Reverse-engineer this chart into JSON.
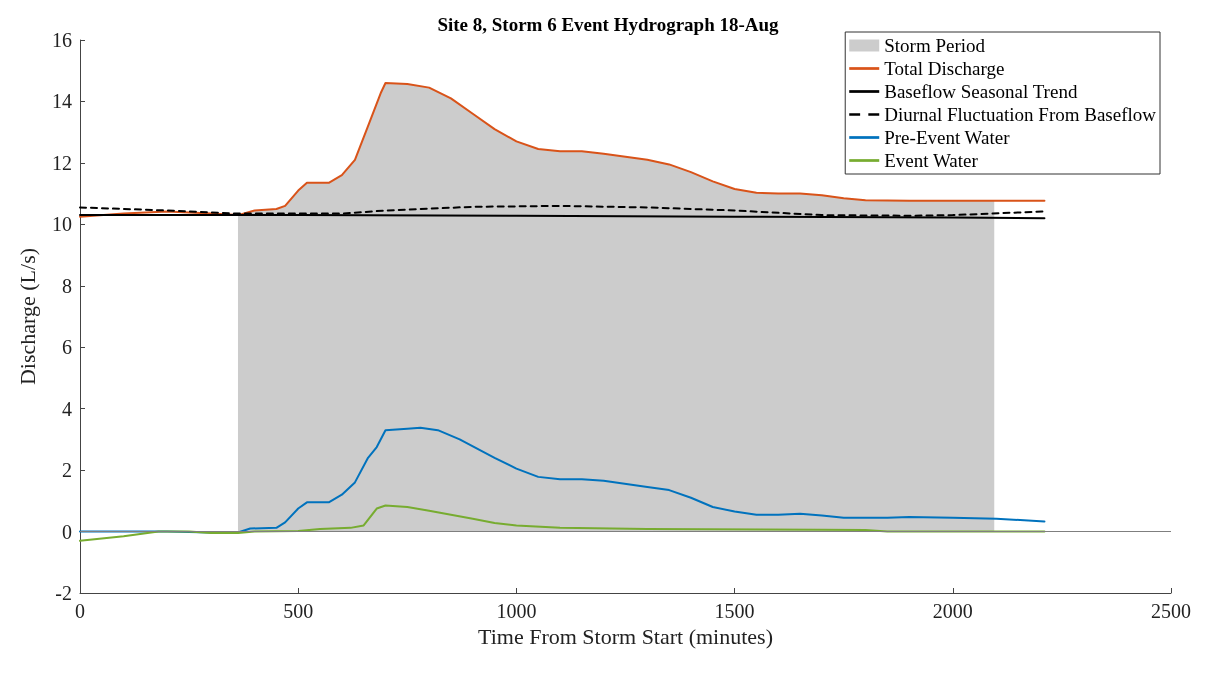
{
  "chart_data": {
    "type": "line",
    "title": "Site 8, Storm 6 Event Hydrograph 18-Aug",
    "xlabel": "Time From Storm Start (minutes)",
    "ylabel": "Discharge (L/s)",
    "xlim": [
      0,
      2500
    ],
    "xticks": [
      0,
      500,
      1000,
      1500,
      2000,
      2500
    ],
    "ylim": [
      -2,
      16
    ],
    "yticks": [
      -2,
      0,
      2,
      4,
      6,
      8,
      10,
      12,
      14,
      16
    ],
    "grid": false,
    "legend": "top right",
    "marker": "none",
    "ref_lines": [
      {
        "axis": "y",
        "value": 0,
        "color": "#7f7f7f"
      }
    ],
    "series": [
      {
        "name": "Storm Period",
        "type": "area",
        "color": "#cccccc",
        "x": [
          362,
          400,
          450,
          470,
          500,
          520,
          570,
          600,
          630,
          660,
          690,
          700,
          750,
          800,
          850,
          900,
          950,
          1000,
          1050,
          1100,
          1150,
          1200,
          1250,
          1300,
          1350,
          1400,
          1450,
          1500,
          1550,
          1600,
          1650,
          1700,
          1750,
          1800,
          1900,
          2000,
          2095
        ],
        "values": [
          10.3,
          10.45,
          10.5,
          10.6,
          11.1,
          11.35,
          11.35,
          11.6,
          12.1,
          13.2,
          14.3,
          14.6,
          14.57,
          14.45,
          14.1,
          13.6,
          13.1,
          12.7,
          12.45,
          12.38,
          12.38,
          12.3,
          12.2,
          12.1,
          11.95,
          11.7,
          11.4,
          11.15,
          11.03,
          11.0,
          11.0,
          10.95,
          10.85,
          10.78,
          10.77,
          10.77,
          10.77
        ]
      },
      {
        "name": "Total Discharge",
        "color": "#d95319",
        "line_style": "solid",
        "x": [
          0,
          100,
          200,
          300,
          362,
          400,
          450,
          470,
          500,
          520,
          570,
          600,
          630,
          660,
          690,
          700,
          750,
          800,
          850,
          900,
          950,
          1000,
          1050,
          1100,
          1150,
          1200,
          1250,
          1300,
          1350,
          1400,
          1450,
          1500,
          1550,
          1600,
          1650,
          1700,
          1750,
          1800,
          1900,
          2000,
          2095,
          2210
        ],
        "values": [
          10.25,
          10.35,
          10.42,
          10.35,
          10.3,
          10.45,
          10.5,
          10.6,
          11.1,
          11.35,
          11.35,
          11.6,
          12.1,
          13.2,
          14.3,
          14.6,
          14.57,
          14.45,
          14.1,
          13.6,
          13.1,
          12.7,
          12.45,
          12.38,
          12.38,
          12.3,
          12.2,
          12.1,
          11.95,
          11.7,
          11.4,
          11.15,
          11.03,
          11.0,
          11.0,
          10.95,
          10.85,
          10.78,
          10.77,
          10.77,
          10.77,
          10.77
        ]
      },
      {
        "name": "Baseflow Seasonal Trend",
        "color": "#000000",
        "line_style": "solid",
        "x": [
          0,
          500,
          1000,
          1500,
          2000,
          2210
        ],
        "values": [
          10.3,
          10.3,
          10.28,
          10.25,
          10.22,
          10.2
        ]
      },
      {
        "name": "Diurnal Fluctuation From Baseflow",
        "color": "#000000",
        "line_style": "dashed",
        "x": [
          0,
          200,
          362,
          600,
          700,
          900,
          1100,
          1300,
          1500,
          1700,
          1900,
          2000,
          2210
        ],
        "values": [
          10.55,
          10.45,
          10.35,
          10.35,
          10.45,
          10.57,
          10.6,
          10.55,
          10.45,
          10.3,
          10.28,
          10.3,
          10.42
        ]
      },
      {
        "name": "Pre-Event Water",
        "color": "#0072bd",
        "line_style": "solid",
        "x": [
          0,
          170,
          200,
          300,
          362,
          390,
          450,
          470,
          500,
          520,
          570,
          600,
          630,
          660,
          680,
          700,
          750,
          780,
          820,
          870,
          950,
          1000,
          1050,
          1100,
          1150,
          1200,
          1300,
          1350,
          1400,
          1450,
          1500,
          1550,
          1600,
          1650,
          1700,
          1750,
          1850,
          1900,
          2000,
          2100,
          2210
        ],
        "values": [
          0,
          0,
          0,
          -0.03,
          -0.03,
          0.1,
          0.12,
          0.3,
          0.75,
          0.95,
          0.95,
          1.2,
          1.6,
          2.4,
          2.75,
          3.3,
          3.35,
          3.38,
          3.3,
          3.0,
          2.4,
          2.05,
          1.78,
          1.7,
          1.7,
          1.65,
          1.45,
          1.35,
          1.1,
          0.8,
          0.65,
          0.55,
          0.55,
          0.58,
          0.52,
          0.45,
          0.45,
          0.47,
          0.45,
          0.42,
          0.33
        ]
      },
      {
        "name": "Event Water",
        "color": "#77ac30",
        "line_style": "solid",
        "x": [
          0,
          100,
          180,
          250,
          300,
          362,
          400,
          500,
          550,
          620,
          650,
          680,
          700,
          750,
          800,
          900,
          950,
          1000,
          1100,
          1300,
          1700,
          1800,
          1850,
          2210
        ],
        "values": [
          -0.3,
          -0.15,
          0,
          0,
          -0.05,
          -0.05,
          0,
          0.02,
          0.08,
          0.12,
          0.2,
          0.75,
          0.85,
          0.8,
          0.68,
          0.42,
          0.28,
          0.2,
          0.12,
          0.08,
          0.06,
          0.05,
          0,
          0
        ]
      }
    ]
  }
}
